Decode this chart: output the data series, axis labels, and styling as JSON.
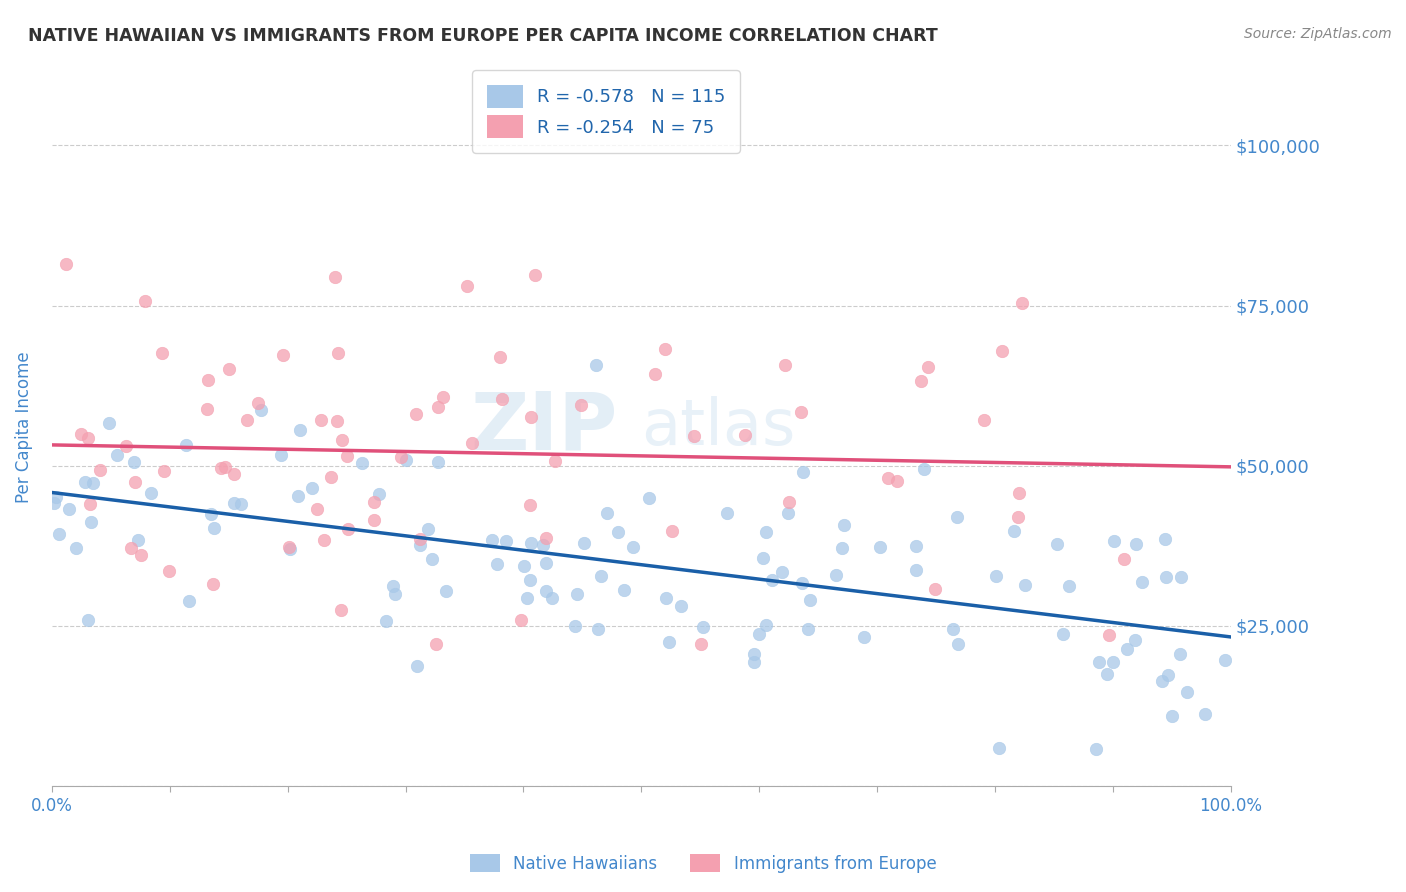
{
  "title": "NATIVE HAWAIIAN VS IMMIGRANTS FROM EUROPE PER CAPITA INCOME CORRELATION CHART",
  "source": "Source: ZipAtlas.com",
  "ylabel": "Per Capita Income",
  "xlim": [
    0,
    1.0
  ],
  "ylim": [
    0,
    112000
  ],
  "yticks": [
    0,
    25000,
    50000,
    75000,
    100000
  ],
  "ytick_labels": [
    "",
    "$25,000",
    "$50,000",
    "$75,000",
    "$100,000"
  ],
  "blue_color": "#a8c8e8",
  "pink_color": "#f4a0b0",
  "blue_line_color": "#1a5fa8",
  "pink_line_color": "#e0507a",
  "legend_text_color": "#2166ac",
  "title_color": "#333333",
  "axis_label_color": "#4488cc",
  "source_color": "#888888",
  "R_blue": -0.578,
  "N_blue": 115,
  "R_pink": -0.254,
  "N_pink": 75,
  "watermark_zip": "ZIP",
  "watermark_atlas": "atlas",
  "blue_seed": 12,
  "pink_seed": 55,
  "background_color": "#ffffff",
  "grid_color": "#cccccc",
  "blue_intercept": 46000,
  "blue_slope": -22000,
  "blue_noise": 9000,
  "pink_intercept": 60000,
  "pink_slope": -18000,
  "pink_noise": 14000
}
